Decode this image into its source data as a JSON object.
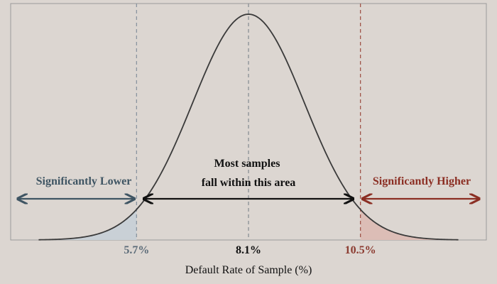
{
  "chart_data": {
    "type": "area",
    "title": "",
    "xlabel": "Default Rate of Sample (%)",
    "ylabel": "",
    "distribution": {
      "kind": "normal",
      "mean": 8.1,
      "sd": 1.2
    },
    "xlim": [
      3.0,
      13.2
    ],
    "grid": false,
    "critical_values": [
      {
        "value": 5.7,
        "label": "5.7%",
        "color": "#5b6b78"
      },
      {
        "value": 8.1,
        "label": "8.1%",
        "color": "#111111"
      },
      {
        "value": 10.5,
        "label": "10.5%",
        "color": "#8b3a2f"
      }
    ],
    "regions": [
      {
        "name": "lower",
        "label": "Significantly Lower",
        "color": "#3f5563",
        "fill": "#c9d0d6"
      },
      {
        "name": "middle",
        "label_lines": [
          "Most samples",
          "fall within this area"
        ],
        "color": "#111111"
      },
      {
        "name": "upper",
        "label": "Significantly Higher",
        "color": "#8b2e23",
        "fill": "#dcbdb6"
      }
    ]
  }
}
